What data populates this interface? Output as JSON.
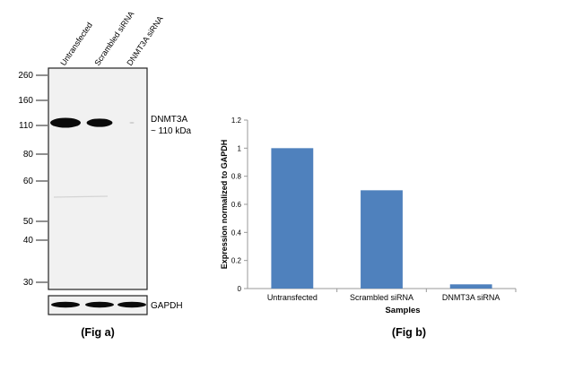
{
  "figure_a": {
    "caption": "(Fig a)",
    "lane_labels": [
      "Untransfected",
      "Scrambled siRNA",
      "DNMT3A siRNA"
    ],
    "mw_markers": [
      "260",
      "160",
      "110",
      "80",
      "60",
      "50",
      "40",
      "30"
    ],
    "band_label_line1": "DNMT3A",
    "band_label_line2": "~ 110 kDa",
    "loading_control_label": "GAPDH",
    "main_band_intensity": [
      1.0,
      0.85,
      0.02
    ],
    "gapdh_band_intensity": [
      0.9,
      0.95,
      0.95
    ]
  },
  "figure_b": {
    "caption": "(Fig b)"
  },
  "chart_data": {
    "type": "bar",
    "categories": [
      "Untransfected",
      "Scrambled siRNA",
      "DNMT3A siRNA"
    ],
    "values": [
      1.0,
      0.7,
      0.03
    ],
    "title": "",
    "xlabel": "Samples",
    "ylabel": "Expression  normalized to GAPDH",
    "ylim": [
      0,
      1.2
    ],
    "yticks": [
      "0",
      "0.2",
      "0.4",
      "0.6",
      "0.8",
      "1",
      "1.2"
    ],
    "bar_color": "#4f81bd",
    "grid": false,
    "legend": "none"
  }
}
